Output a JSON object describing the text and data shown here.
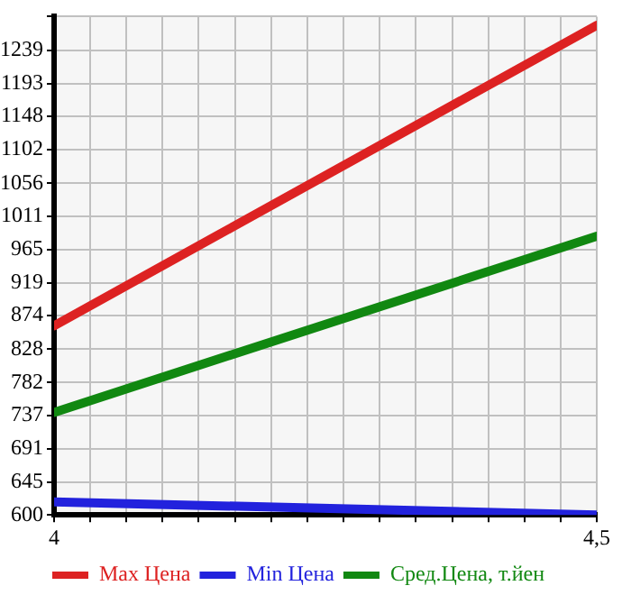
{
  "chart_data": {
    "type": "line",
    "x": [
      4,
      4.5
    ],
    "series": [
      {
        "name": "Max Цена",
        "color": "#dd2222",
        "values": [
          860,
          1273
        ]
      },
      {
        "name": "Min Цена",
        "color": "#2222dd",
        "values": [
          618,
          600
        ]
      },
      {
        "name": "Сред.Цена, т.йен",
        "color": "#118811",
        "values": [
          741,
          983
        ]
      }
    ],
    "xlim": [
      4,
      4.5
    ],
    "xticks": [
      4,
      {
        "value": 4.0333,
        "label": null
      },
      {
        "value": 4.0667,
        "label": null
      },
      {
        "value": 4.1,
        "label": null
      },
      {
        "value": 4.1333,
        "label": null
      },
      {
        "value": 4.1667,
        "label": null
      },
      {
        "value": 4.2,
        "label": null
      },
      {
        "value": 4.2333,
        "label": null
      },
      {
        "value": 4.2667,
        "label": null
      },
      {
        "value": 4.3,
        "label": null
      },
      {
        "value": 4.3333,
        "label": null
      },
      {
        "value": 4.3667,
        "label": null
      },
      {
        "value": 4.4,
        "label": null
      },
      {
        "value": 4.4333,
        "label": null
      },
      {
        "value": 4.4667,
        "label": null
      },
      {
        "value": 4.5,
        "label": "4,5"
      }
    ],
    "ylim": [
      600,
      1285
    ],
    "yticks": [
      600,
      645,
      691,
      737,
      782,
      828,
      874,
      919,
      965,
      1011,
      1056,
      1102,
      1148,
      1193,
      1239,
      {
        "value": 1285,
        "label": null
      }
    ],
    "grid": true,
    "legend": "bottom",
    "marker": "none",
    "line_style": "solid"
  }
}
